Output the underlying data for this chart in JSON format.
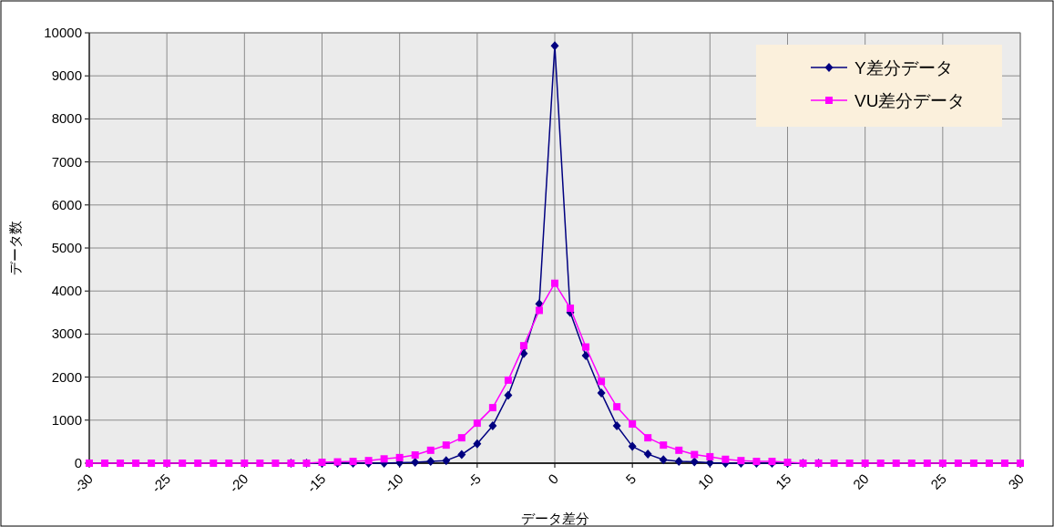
{
  "chart_data": {
    "type": "line",
    "xlabel": "データ差分",
    "ylabel": "データ数",
    "x": [
      -30,
      -29,
      -28,
      -27,
      -26,
      -25,
      -24,
      -23,
      -22,
      -21,
      -20,
      -19,
      -18,
      -17,
      -16,
      -15,
      -14,
      -13,
      -12,
      -11,
      -10,
      -9,
      -8,
      -7,
      -6,
      -5,
      -4,
      -3,
      -2,
      -1,
      0,
      1,
      2,
      3,
      4,
      5,
      6,
      7,
      8,
      9,
      10,
      11,
      12,
      13,
      14,
      15,
      16,
      17,
      18,
      19,
      20,
      21,
      22,
      23,
      24,
      25,
      26,
      27,
      28,
      29,
      30
    ],
    "series": [
      {
        "name": "Y差分データ",
        "color": "#000080",
        "marker": "diamond",
        "values": [
          null,
          null,
          null,
          null,
          null,
          null,
          null,
          null,
          null,
          null,
          null,
          null,
          null,
          0,
          0,
          0,
          0,
          0,
          0,
          0,
          10,
          20,
          40,
          60,
          200,
          450,
          870,
          1580,
          2550,
          3700,
          9700,
          3500,
          2500,
          1630,
          870,
          390,
          210,
          80,
          40,
          30,
          10,
          0,
          0,
          0,
          0,
          0,
          0,
          0,
          null,
          null,
          null,
          null,
          null,
          null,
          null,
          null,
          null,
          null,
          null,
          null,
          null
        ]
      },
      {
        "name": "VU差分データ",
        "color": "#ff00ff",
        "marker": "square",
        "values": [
          0,
          0,
          0,
          0,
          0,
          0,
          0,
          0,
          0,
          0,
          0,
          0,
          0,
          0,
          0,
          20,
          30,
          40,
          60,
          100,
          130,
          190,
          300,
          420,
          590,
          930,
          1290,
          1930,
          2730,
          3550,
          4180,
          3600,
          2700,
          1900,
          1310,
          910,
          590,
          420,
          300,
          200,
          150,
          90,
          60,
          40,
          40,
          20,
          0,
          0,
          0,
          0,
          0,
          0,
          0,
          0,
          0,
          0,
          0,
          0,
          0,
          0,
          0
        ]
      }
    ],
    "xlim": [
      -30,
      30
    ],
    "xticks": [
      -30,
      -25,
      -20,
      -15,
      -10,
      -5,
      0,
      5,
      10,
      15,
      20,
      25,
      30
    ],
    "ylim": [
      0,
      10000
    ],
    "yticks": [
      0,
      1000,
      2000,
      3000,
      4000,
      5000,
      6000,
      7000,
      8000,
      9000,
      10000
    ],
    "grid": true,
    "legend": "top right"
  }
}
